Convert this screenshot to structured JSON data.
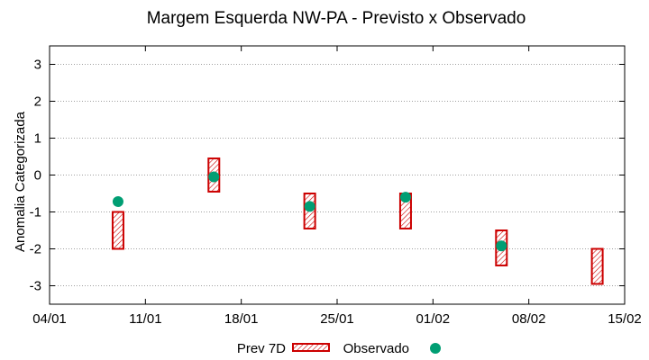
{
  "chart_data": {
    "type": "interval-scatter",
    "title": "Margem Esquerda NW-PA - Previsto x Observado",
    "ylabel": "Anomalia Categorizada",
    "xlabel": "",
    "x_ticks": [
      "04/01",
      "11/01",
      "18/01",
      "25/01",
      "01/02",
      "08/02",
      "15/02"
    ],
    "y_ticks": [
      "-3",
      "-2",
      "-1",
      "0",
      "1",
      "2",
      "3"
    ],
    "ylim": [
      -3.5,
      3.5
    ],
    "grid": true,
    "legend_position": "bottom",
    "series": [
      {
        "name": "Prev 7D",
        "kind": "box",
        "color": "#cc0000",
        "points": [
          {
            "x": "09/01",
            "low": -2.0,
            "high": -1.0
          },
          {
            "x": "16/01",
            "low": -0.45,
            "high": 0.45
          },
          {
            "x": "23/01",
            "low": -1.45,
            "high": -0.5
          },
          {
            "x": "30/01",
            "low": -1.45,
            "high": -0.5
          },
          {
            "x": "06/02",
            "low": -2.45,
            "high": -1.5
          },
          {
            "x": "13/02",
            "low": -2.95,
            "high": -2.0
          }
        ]
      },
      {
        "name": "Observado",
        "kind": "point",
        "color": "#009e73",
        "points": [
          {
            "x": "09/01",
            "y": -0.72
          },
          {
            "x": "16/01",
            "y": -0.05
          },
          {
            "x": "23/01",
            "y": -0.85
          },
          {
            "x": "30/01",
            "y": -0.6
          },
          {
            "x": "06/02",
            "y": -1.92
          }
        ]
      }
    ]
  }
}
